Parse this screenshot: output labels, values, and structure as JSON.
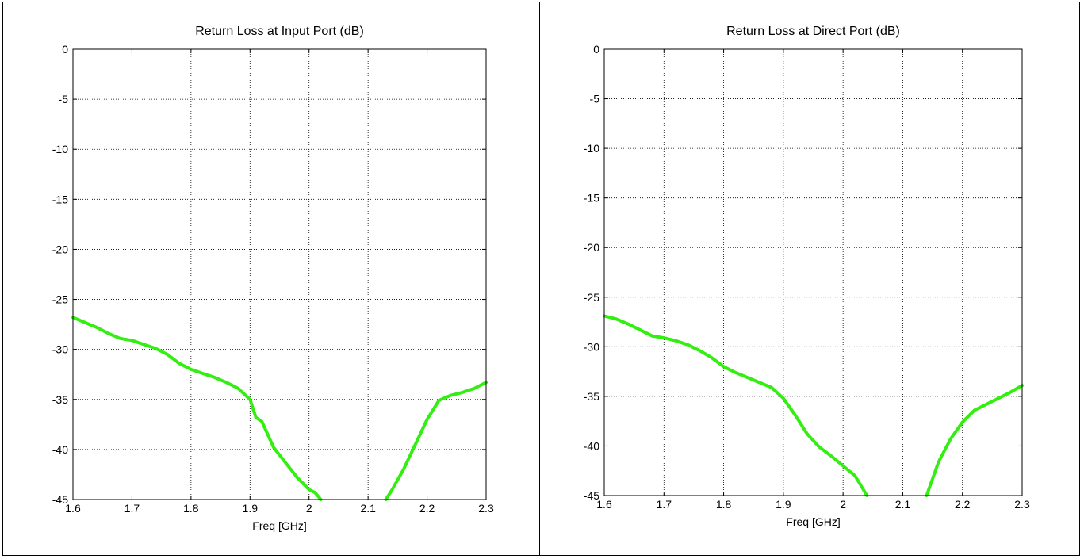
{
  "chart_data": [
    {
      "type": "line",
      "title": "Return Loss at Input Port (dB)",
      "xlabel": "Freq [GHz]",
      "ylabel": "",
      "xlim": [
        1.6,
        2.3
      ],
      "ylim": [
        -45,
        0
      ],
      "xticks": [
        "1.6",
        "1.7",
        "1.8",
        "1.9",
        "2",
        "2.1",
        "2.2",
        "2.3"
      ],
      "yticks": [
        "0",
        "-5",
        "-10",
        "-15",
        "-20",
        "-25",
        "-30",
        "-35",
        "-40",
        "-45"
      ],
      "grid": true,
      "line_color": "#33ee11",
      "series": [
        {
          "x": [
            1.6,
            1.62,
            1.64,
            1.66,
            1.68,
            1.7,
            1.72,
            1.74,
            1.76,
            1.78,
            1.8,
            1.82,
            1.84,
            1.86,
            1.88,
            1.9,
            1.91,
            1.92,
            1.94,
            1.96,
            1.98,
            2.0,
            2.01,
            2.02
          ],
          "y": [
            -26.8,
            -27.3,
            -27.8,
            -28.4,
            -28.9,
            -29.1,
            -29.5,
            -29.9,
            -30.5,
            -31.4,
            -32.0,
            -32.4,
            -32.8,
            -33.3,
            -33.9,
            -35.0,
            -36.8,
            -37.2,
            -39.8,
            -41.3,
            -42.8,
            -44.0,
            -44.3,
            -45.0
          ]
        },
        {
          "x": [
            2.13,
            2.14,
            2.16,
            2.18,
            2.2,
            2.22,
            2.24,
            2.26,
            2.28,
            2.3
          ],
          "y": [
            -45.0,
            -44.1,
            -42.0,
            -39.5,
            -37.0,
            -35.1,
            -34.6,
            -34.3,
            -33.9,
            -33.3
          ]
        }
      ]
    },
    {
      "type": "line",
      "title": "Return Loss at Direct Port (dB)",
      "xlabel": "Freq [GHz]",
      "ylabel": "",
      "xlim": [
        1.6,
        2.3
      ],
      "ylim": [
        -45,
        0
      ],
      "xticks": [
        "1.6",
        "1.7",
        "1.8",
        "1.9",
        "2",
        "2.1",
        "2.2",
        "2.3"
      ],
      "yticks": [
        "0",
        "-5",
        "-10",
        "-15",
        "-20",
        "-25",
        "-30",
        "-35",
        "-40",
        "-45"
      ],
      "grid": true,
      "line_color": "#33ee11",
      "series": [
        {
          "x": [
            1.6,
            1.62,
            1.64,
            1.66,
            1.68,
            1.7,
            1.72,
            1.74,
            1.76,
            1.78,
            1.8,
            1.82,
            1.84,
            1.86,
            1.88,
            1.9,
            1.92,
            1.94,
            1.96,
            1.98,
            2.0,
            2.02,
            2.04
          ],
          "y": [
            -26.9,
            -27.2,
            -27.7,
            -28.3,
            -28.9,
            -29.1,
            -29.4,
            -29.8,
            -30.4,
            -31.1,
            -32.0,
            -32.6,
            -33.1,
            -33.6,
            -34.1,
            -35.2,
            -36.9,
            -38.8,
            -40.1,
            -41.0,
            -42.0,
            -43.0,
            -45.0
          ]
        },
        {
          "x": [
            2.14,
            2.16,
            2.18,
            2.2,
            2.22,
            2.24,
            2.26,
            2.28,
            2.3
          ],
          "y": [
            -45.0,
            -41.6,
            -39.3,
            -37.6,
            -36.4,
            -35.8,
            -35.2,
            -34.6,
            -33.9
          ]
        }
      ]
    }
  ]
}
